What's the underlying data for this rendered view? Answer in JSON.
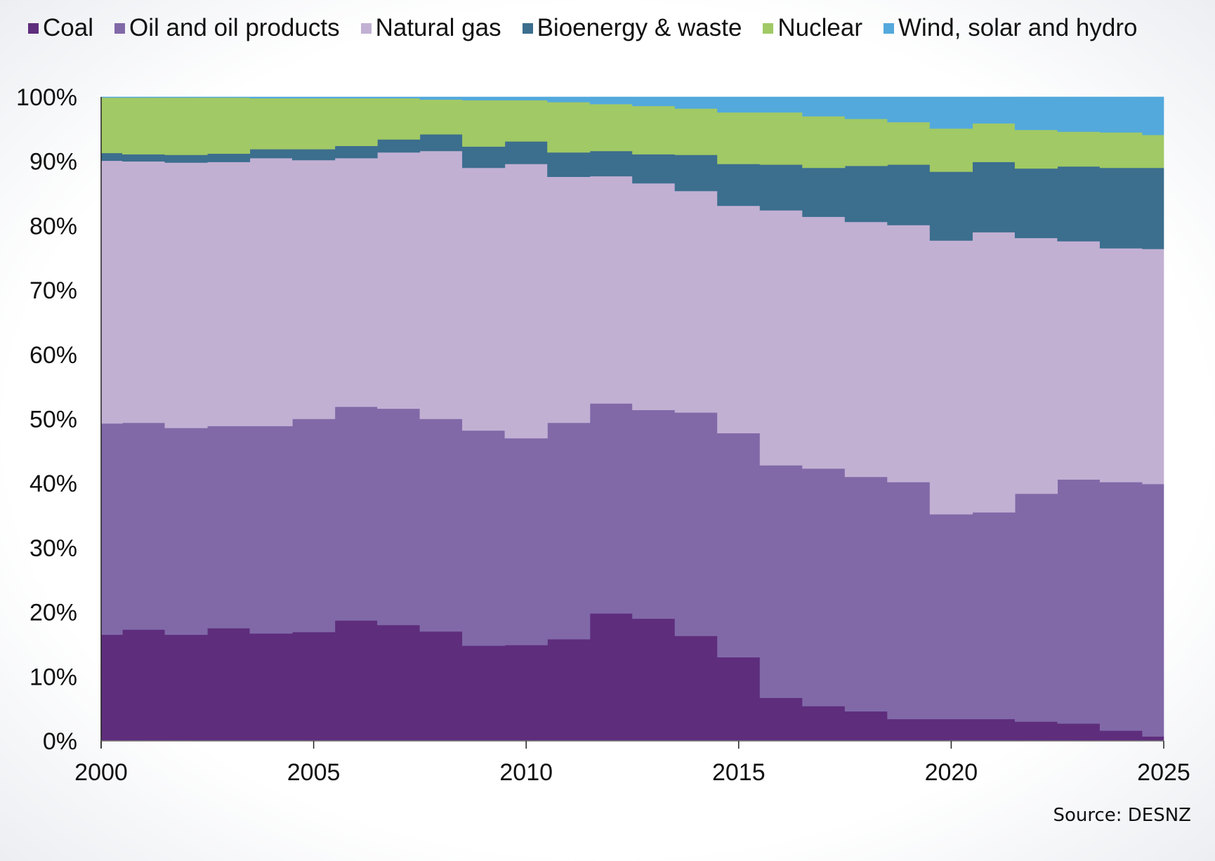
{
  "chart_data": {
    "type": "area",
    "stacked": true,
    "step": true,
    "percent": true,
    "title": "",
    "xlabel": "",
    "ylabel": "",
    "xlim": [
      2000,
      2025
    ],
    "ylim": [
      0,
      100
    ],
    "x_ticks": [
      "2000",
      "2005",
      "2010",
      "2015",
      "2020",
      "2025"
    ],
    "y_ticks": [
      "0%",
      "10%",
      "20%",
      "30%",
      "40%",
      "50%",
      "60%",
      "70%",
      "80%",
      "90%",
      "100%"
    ],
    "grid": false,
    "legend_position": "top",
    "x": [
      2000,
      2001,
      2002,
      2003,
      2004,
      2005,
      2006,
      2007,
      2008,
      2009,
      2010,
      2011,
      2012,
      2013,
      2014,
      2015,
      2016,
      2017,
      2018,
      2019,
      2020,
      2021,
      2022,
      2023,
      2024,
      2025
    ],
    "series": [
      {
        "name": "Coal",
        "color": "#5e2d7c",
        "values": [
          16.5,
          17.3,
          16.5,
          17.5,
          16.7,
          16.9,
          18.7,
          18.0,
          17.0,
          14.8,
          14.9,
          15.8,
          19.8,
          19.0,
          16.3,
          13.0,
          6.7,
          5.4,
          4.6,
          3.4,
          3.4,
          3.4,
          3.0,
          2.7,
          1.6,
          0.7
        ]
      },
      {
        "name": "Oil and oil products",
        "color": "#8169a8",
        "values": [
          32.8,
          32.1,
          32.1,
          31.4,
          32.2,
          33.1,
          33.2,
          33.6,
          33.0,
          33.4,
          32.1,
          33.6,
          32.6,
          32.4,
          34.7,
          34.8,
          36.1,
          36.9,
          36.4,
          36.8,
          31.8,
          32.1,
          35.4,
          37.9,
          38.6,
          39.2
        ]
      },
      {
        "name": "Natural gas",
        "color": "#c2b0d3",
        "values": [
          40.8,
          40.6,
          41.2,
          41.0,
          41.6,
          40.2,
          38.6,
          39.8,
          41.6,
          40.8,
          42.6,
          38.2,
          35.3,
          35.2,
          34.4,
          35.3,
          39.6,
          39.1,
          39.6,
          39.9,
          42.5,
          43.5,
          39.7,
          37.0,
          36.3,
          36.5
        ]
      },
      {
        "name": "Bioenergy & waste",
        "color": "#3c6e8e",
        "values": [
          1.2,
          1.1,
          1.2,
          1.3,
          1.4,
          1.7,
          1.9,
          2.0,
          2.6,
          3.3,
          3.5,
          3.8,
          3.9,
          4.5,
          5.6,
          6.5,
          7.1,
          7.6,
          8.7,
          9.4,
          10.7,
          10.9,
          10.8,
          11.6,
          12.5,
          12.6
        ]
      },
      {
        "name": "Nuclear",
        "color": "#a1c965",
        "values": [
          8.6,
          8.8,
          8.9,
          8.7,
          7.9,
          7.9,
          7.4,
          6.4,
          5.4,
          7.2,
          6.4,
          7.8,
          7.3,
          7.5,
          7.2,
          8.0,
          8.1,
          8.0,
          7.3,
          6.6,
          6.7,
          6.0,
          6.0,
          5.4,
          5.5,
          5.1
        ]
      },
      {
        "name": "Wind, solar and hydro",
        "color": "#53a9dc",
        "values": [
          0.1,
          0.1,
          0.1,
          0.1,
          0.2,
          0.2,
          0.2,
          0.2,
          0.4,
          0.5,
          0.5,
          0.8,
          1.1,
          1.4,
          1.8,
          2.4,
          2.4,
          3.0,
          3.4,
          3.9,
          4.9,
          4.1,
          5.1,
          5.4,
          5.5,
          5.9
        ]
      }
    ],
    "source": "Source: DESNZ"
  }
}
